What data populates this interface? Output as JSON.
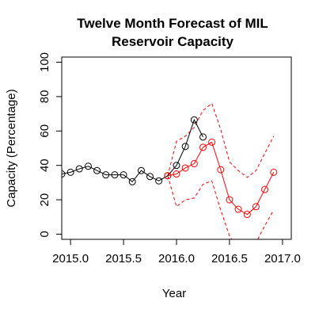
{
  "chart_data": {
    "type": "line",
    "title": "Twelve Month Forecast of MIL\nReservoir Capacity",
    "xlabel": "Year",
    "ylabel": "Capacity (Percentage)",
    "xlim": [
      2014.917,
      2017.083
    ],
    "ylim": [
      -3,
      103
    ],
    "xticks": [
      2015.0,
      2015.5,
      2016.0,
      2016.5,
      2017.0
    ],
    "xtick_labels": [
      "2015.0",
      "2015.5",
      "2016.0",
      "2016.5",
      "2017.0"
    ],
    "yticks": [
      0,
      20,
      40,
      60,
      80,
      100
    ],
    "ytick_labels": [
      "0",
      "20",
      "40",
      "60",
      "80",
      "100"
    ],
    "grid": false,
    "legend": "none",
    "colors": {
      "actual": "#000000",
      "forecast": "#ff0000"
    },
    "series": [
      {
        "role": "actual",
        "marker": "open-circle",
        "line_style": "solid",
        "points": [
          [
            2014.917,
            35
          ],
          [
            2015.0,
            36
          ],
          [
            2015.083,
            38
          ],
          [
            2015.167,
            39.5
          ],
          [
            2015.25,
            37
          ],
          [
            2015.333,
            34.5
          ],
          [
            2015.417,
            34.5
          ],
          [
            2015.5,
            34.5
          ],
          [
            2015.583,
            30.5
          ],
          [
            2015.667,
            37
          ],
          [
            2015.75,
            33.5
          ],
          [
            2015.833,
            31
          ],
          [
            2015.917,
            34
          ],
          [
            2016.0,
            40
          ],
          [
            2016.083,
            51
          ],
          [
            2016.167,
            66.5
          ],
          [
            2016.25,
            56.5
          ]
        ]
      },
      {
        "role": "forecast",
        "marker": "open-circle",
        "line_style": "solid",
        "points": [
          [
            2015.917,
            34
          ],
          [
            2016.0,
            35
          ],
          [
            2016.083,
            38.5
          ],
          [
            2016.167,
            41
          ],
          [
            2016.25,
            50.5
          ],
          [
            2016.333,
            53.5
          ],
          [
            2016.417,
            37.5
          ],
          [
            2016.5,
            20
          ],
          [
            2016.583,
            14.5
          ],
          [
            2016.667,
            11.5
          ],
          [
            2016.75,
            16
          ],
          [
            2016.833,
            26
          ],
          [
            2016.917,
            36
          ]
        ]
      },
      {
        "role": "upper-bound",
        "line_style": "dashed",
        "points": [
          [
            2015.917,
            34
          ],
          [
            2016.0,
            54
          ],
          [
            2016.083,
            57
          ],
          [
            2016.167,
            62
          ],
          [
            2016.25,
            72
          ],
          [
            2016.333,
            76
          ],
          [
            2016.417,
            61
          ],
          [
            2016.5,
            42
          ],
          [
            2016.583,
            37
          ],
          [
            2016.667,
            33
          ],
          [
            2016.75,
            37
          ],
          [
            2016.833,
            47
          ],
          [
            2016.917,
            57
          ]
        ]
      },
      {
        "role": "lower-bound",
        "line_style": "dashed",
        "points": [
          [
            2015.917,
            34
          ],
          [
            2016.0,
            16
          ],
          [
            2016.083,
            20
          ],
          [
            2016.167,
            21
          ],
          [
            2016.25,
            29
          ],
          [
            2016.333,
            31
          ],
          [
            2016.417,
            14
          ],
          [
            2016.5,
            -1
          ],
          [
            2016.583,
            -9
          ],
          [
            2016.667,
            -10
          ],
          [
            2016.75,
            -5
          ],
          [
            2016.833,
            5
          ],
          [
            2016.917,
            14
          ]
        ]
      }
    ]
  }
}
